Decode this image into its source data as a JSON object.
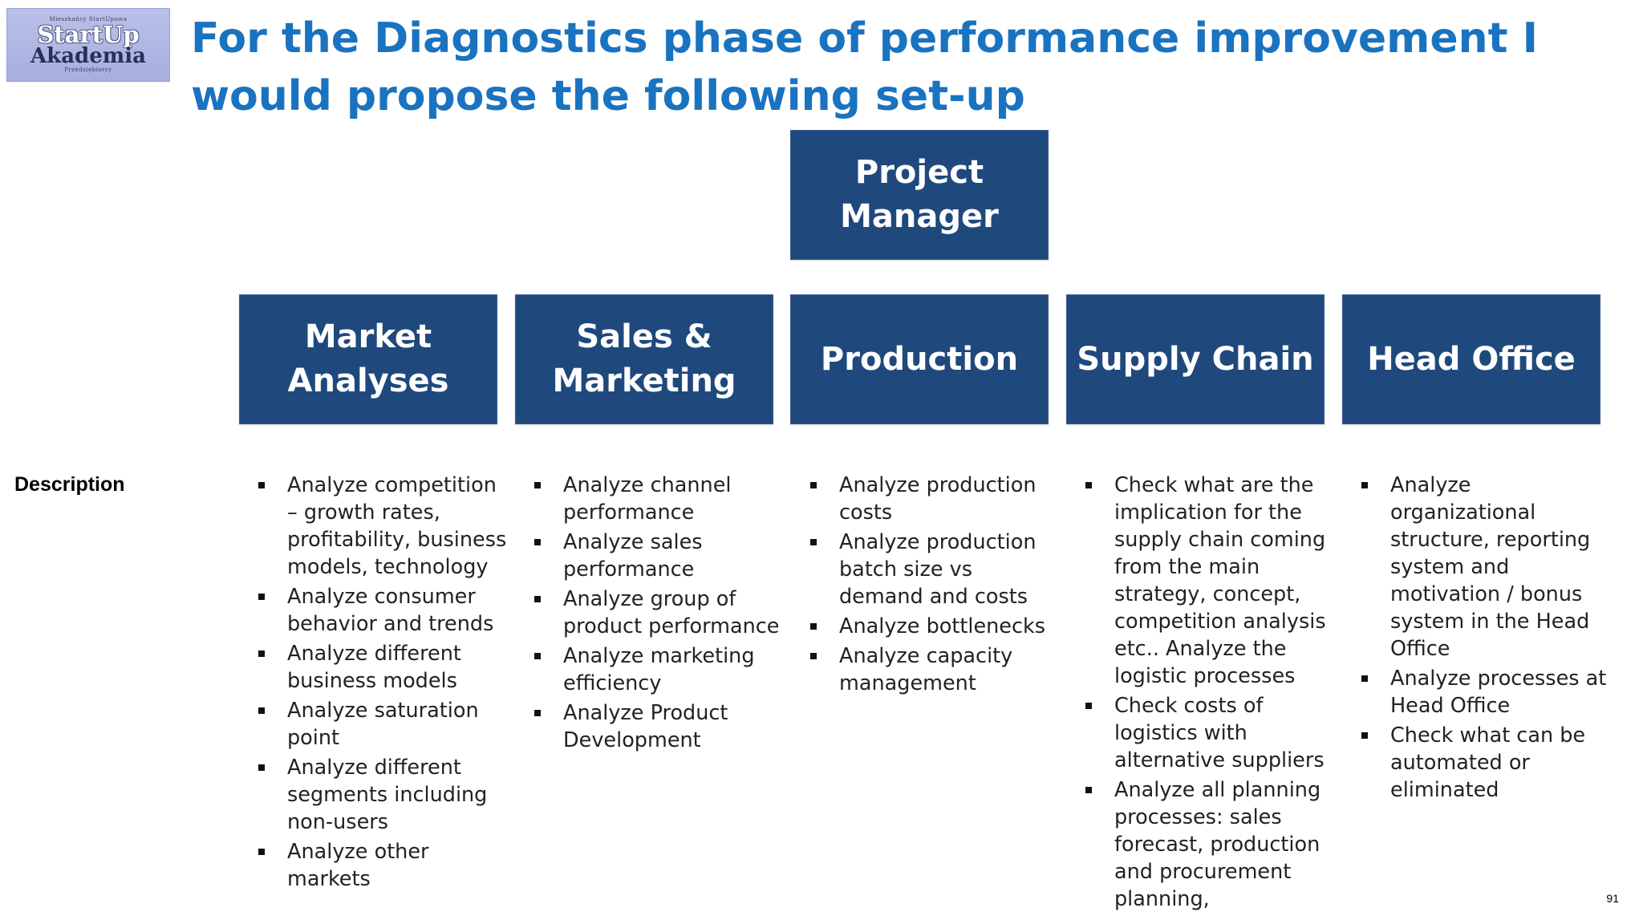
{
  "logo": {
    "top_text": "Mieszkańcy StartUpowa",
    "line1": "StartUp",
    "line2": "Akademia",
    "bottom_text": "Przedsiębiorcy"
  },
  "title": "For the Diagnostics phase of performance improvement I would propose the following set-up",
  "project_manager": "Project Manager",
  "description_label": "Description",
  "columns": [
    {
      "header": "Market Analyses",
      "items": [
        "Analyze competition – growth rates, profitability, business models, technology",
        "Analyze consumer behavior and trends",
        "Analyze different business models",
        "Analyze saturation point",
        "Analyze different segments including non-users",
        "Analyze other markets"
      ]
    },
    {
      "header": "Sales & Marketing",
      "items": [
        "Analyze channel performance",
        "Analyze sales performance",
        "Analyze group of product performance",
        "Analyze marketing efficiency",
        "Analyze Product Development"
      ]
    },
    {
      "header": "Production",
      "items": [
        "Analyze production costs",
        "Analyze production batch size vs demand and costs",
        "Analyze bottlenecks",
        "Analyze capacity management"
      ]
    },
    {
      "header": "Supply Chain",
      "items": [
        "Check what are the implication for the supply chain coming from the main strategy, concept, competition analysis etc.. Analyze the logistic processes",
        "Check costs of logistics with alternative suppliers",
        "Analyze all planning processes: sales forecast, production and procurement planning,"
      ]
    },
    {
      "header": "Head Office",
      "items": [
        "Analyze organizational structure, reporting system and motivation / bonus system in the Head Office",
        "Analyze processes at Head Office",
        "Check what can be automated or eliminated"
      ]
    }
  ],
  "page_number": "91",
  "colors": {
    "title": "#1a73c0",
    "box_fill": "#1f497d",
    "box_text": "#ffffff",
    "body_text": "#222222"
  }
}
